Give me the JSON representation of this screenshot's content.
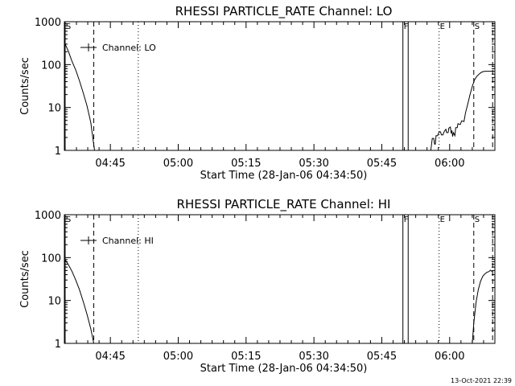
{
  "timestamp": "13-Oct-2021 22:39",
  "chart_data": [
    {
      "type": "line",
      "title": "RHESSI PARTICLE_RATE Channel: LO",
      "xlabel": "Start Time (28-Jan-06 04:34:50)",
      "ylabel": "Counts/sec",
      "yscale": "log",
      "ylim": [
        1,
        1000
      ],
      "xlim": [
        "04:34:50",
        "06:10:00"
      ],
      "xticks": [
        "04:45",
        "05:00",
        "05:15",
        "05:30",
        "05:45",
        "06:00"
      ],
      "yticks": [
        "1",
        "10",
        "100",
        "1000"
      ],
      "legend": {
        "label": "Channel: LO",
        "placement": "top-left"
      },
      "markers": [
        {
          "label": "S",
          "time": "04:35:00",
          "style": "solid"
        },
        {
          "label": "",
          "time": "04:41:20",
          "style": "dashed"
        },
        {
          "label": "",
          "time": "04:51:10",
          "style": "dotted"
        },
        {
          "label": "F",
          "time": "05:49:40",
          "style": "solid"
        },
        {
          "label": "",
          "time": "05:50:50",
          "style": "solid"
        },
        {
          "label": "E",
          "time": "05:57:40",
          "style": "dotted"
        },
        {
          "label": "S",
          "time": "06:05:20",
          "style": "dashed"
        },
        {
          "label": "",
          "time": "06:09:30",
          "style": "dashed"
        }
      ],
      "series": [
        {
          "segments": [
            [
              [
                "04:34:50",
                330
              ],
              [
                "04:35:40",
                210
              ],
              [
                "04:36:30",
                120
              ],
              [
                "04:37:20",
                75
              ],
              [
                "04:38:10",
                42
              ],
              [
                "04:39:00",
                22
              ],
              [
                "04:39:50",
                11
              ],
              [
                "04:40:40",
                4.5
              ],
              [
                "04:41:10",
                1.8
              ],
              [
                "04:41:30",
                1
              ]
            ],
            [
              [
                "05:55:50",
                1
              ],
              [
                "05:56:10",
                1.9
              ],
              [
                "05:56:30",
                1.9
              ],
              [
                "05:56:40",
                1.4
              ],
              [
                "05:56:50",
                1.4
              ],
              [
                "05:57:00",
                2.2
              ],
              [
                "05:57:20",
                2.2
              ],
              [
                "05:57:40",
                2.7
              ],
              [
                "05:58:00",
                2.7
              ],
              [
                "05:58:10",
                2.3
              ],
              [
                "05:58:30",
                2.3
              ],
              [
                "05:58:50",
                2.8
              ],
              [
                "05:59:10",
                3.1
              ],
              [
                "05:59:20",
                2.6
              ],
              [
                "05:59:40",
                2.6
              ],
              [
                "05:59:50",
                3.3
              ],
              [
                "06:00:10",
                3.5
              ],
              [
                "06:00:20",
                2.5
              ],
              [
                "06:00:30",
                2.9
              ],
              [
                "06:00:40",
                2.1
              ],
              [
                "06:00:50",
                2.6
              ],
              [
                "06:01:10",
                2.2
              ],
              [
                "06:01:20",
                3.4
              ],
              [
                "06:01:40",
                3.4
              ],
              [
                "06:01:50",
                4.2
              ],
              [
                "06:02:20",
                4.0
              ],
              [
                "06:02:40",
                4.9
              ],
              [
                "06:03:10",
                4.7
              ],
              [
                "06:03:30",
                7.5
              ],
              [
                "06:04:00",
                12
              ],
              [
                "06:04:30",
                20
              ],
              [
                "06:05:00",
                31
              ],
              [
                "06:05:30",
                44
              ],
              [
                "06:06:00",
                53
              ],
              [
                "06:06:30",
                60
              ],
              [
                "06:07:00",
                66
              ],
              [
                "06:07:30",
                69
              ],
              [
                "06:08:00",
                70
              ],
              [
                "06:08:30",
                70
              ],
              [
                "06:09:20",
                70
              ]
            ]
          ]
        }
      ]
    },
    {
      "type": "line",
      "title": "RHESSI PARTICLE_RATE Channel: HI",
      "xlabel": "Start Time (28-Jan-06 04:34:50)",
      "ylabel": "Counts/sec",
      "yscale": "log",
      "ylim": [
        1,
        1000
      ],
      "xlim": [
        "04:34:50",
        "06:10:00"
      ],
      "xticks": [
        "04:45",
        "05:00",
        "05:15",
        "05:30",
        "05:45",
        "06:00"
      ],
      "yticks": [
        "1",
        "10",
        "100",
        "1000"
      ],
      "legend": {
        "label": "Channel: HI",
        "placement": "top-left"
      },
      "markers": [
        {
          "label": "S",
          "time": "04:35:00",
          "style": "solid"
        },
        {
          "label": "",
          "time": "04:41:20",
          "style": "dashed"
        },
        {
          "label": "",
          "time": "04:51:10",
          "style": "dotted"
        },
        {
          "label": "F",
          "time": "05:49:40",
          "style": "solid"
        },
        {
          "label": "",
          "time": "05:50:50",
          "style": "solid"
        },
        {
          "label": "E",
          "time": "05:57:40",
          "style": "dotted"
        },
        {
          "label": "S",
          "time": "06:05:20",
          "style": "dashed"
        },
        {
          "label": "",
          "time": "06:09:30",
          "style": "dashed"
        }
      ],
      "series": [
        {
          "segments": [
            [
              [
                "04:34:50",
                95
              ],
              [
                "04:35:40",
                70
              ],
              [
                "04:36:30",
                48
              ],
              [
                "04:37:20",
                30
              ],
              [
                "04:38:10",
                18
              ],
              [
                "04:39:00",
                9.5
              ],
              [
                "04:39:50",
                4.8
              ],
              [
                "04:40:40",
                2.2
              ],
              [
                "04:41:20",
                1
              ]
            ],
            [
              [
                "06:05:00",
                1
              ],
              [
                "06:05:20",
                3
              ],
              [
                "06:05:50",
                9
              ],
              [
                "06:06:20",
                18
              ],
              [
                "06:06:50",
                28
              ],
              [
                "06:07:20",
                37
              ],
              [
                "06:07:50",
                42
              ],
              [
                "06:08:20",
                46
              ],
              [
                "06:08:40",
                47
              ],
              [
                "06:09:00",
                51
              ],
              [
                "06:09:20",
                47
              ]
            ]
          ]
        }
      ]
    }
  ]
}
